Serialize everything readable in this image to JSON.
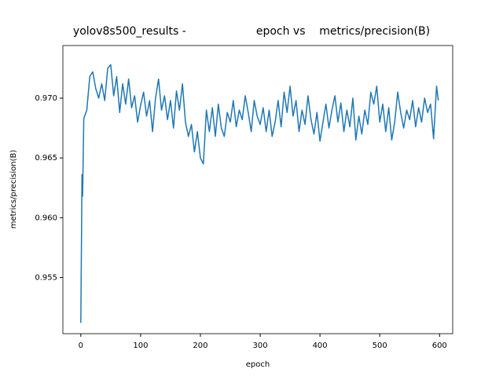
{
  "chart_data": {
    "type": "line",
    "title": "yolov8s500_results -                    epoch vs    metrics/precision(B)",
    "x_label": "epoch",
    "y_label": "metrics/precision(B)",
    "xlim": [
      -30,
      622
    ],
    "ylim": [
      0.9503,
      0.9744
    ],
    "xticks": [
      0,
      100,
      200,
      300,
      400,
      500,
      600
    ],
    "yticks": [
      0.955,
      {
        "value": 0.96,
        "label": "0.960"
      },
      0.965,
      {
        "value": 0.97,
        "label": "0.970"
      }
    ],
    "grid": false,
    "x": [
      0,
      2,
      3,
      5,
      10,
      15,
      20,
      25,
      30,
      35,
      40,
      45,
      50,
      55,
      60,
      65,
      70,
      75,
      80,
      85,
      90,
      95,
      100,
      105,
      110,
      115,
      120,
      125,
      130,
      135,
      140,
      145,
      150,
      155,
      160,
      165,
      170,
      175,
      180,
      185,
      190,
      195,
      200,
      205,
      210,
      215,
      220,
      225,
      230,
      235,
      240,
      245,
      250,
      255,
      260,
      265,
      270,
      275,
      280,
      285,
      290,
      295,
      300,
      305,
      310,
      315,
      320,
      325,
      330,
      335,
      340,
      345,
      350,
      355,
      360,
      365,
      370,
      375,
      380,
      385,
      390,
      395,
      400,
      405,
      410,
      415,
      420,
      425,
      430,
      435,
      440,
      445,
      450,
      455,
      460,
      465,
      470,
      475,
      480,
      485,
      490,
      495,
      500,
      505,
      510,
      515,
      520,
      525,
      530,
      535,
      540,
      545,
      550,
      555,
      560,
      565,
      570,
      575,
      580,
      585,
      590,
      595,
      598
    ],
    "series": [
      {
        "color": "#1f77b4",
        "values": [
          0.9512,
          0.9636,
          0.9618,
          0.9683,
          0.969,
          0.9718,
          0.9722,
          0.9708,
          0.97,
          0.9712,
          0.9698,
          0.9725,
          0.9728,
          0.9702,
          0.9718,
          0.9688,
          0.9712,
          0.9695,
          0.9716,
          0.9692,
          0.9702,
          0.968,
          0.9694,
          0.9705,
          0.9685,
          0.9698,
          0.9672,
          0.97,
          0.9716,
          0.969,
          0.9702,
          0.9682,
          0.9698,
          0.9675,
          0.9706,
          0.969,
          0.9712,
          0.968,
          0.9668,
          0.9678,
          0.9655,
          0.9672,
          0.965,
          0.9645,
          0.969,
          0.9672,
          0.9692,
          0.9668,
          0.9695,
          0.9675,
          0.9668,
          0.9688,
          0.968,
          0.9698,
          0.9676,
          0.969,
          0.9682,
          0.9702,
          0.9688,
          0.9672,
          0.9698,
          0.9685,
          0.9678,
          0.9692,
          0.9672,
          0.969,
          0.9668,
          0.968,
          0.9698,
          0.9676,
          0.9705,
          0.9688,
          0.971,
          0.9685,
          0.9698,
          0.9672,
          0.969,
          0.9678,
          0.9702,
          0.9682,
          0.967,
          0.9688,
          0.9664,
          0.968,
          0.9695,
          0.9675,
          0.969,
          0.9702,
          0.968,
          0.9696,
          0.9672,
          0.969,
          0.9676,
          0.97,
          0.9665,
          0.9685,
          0.967,
          0.969,
          0.9678,
          0.9705,
          0.9695,
          0.971,
          0.968,
          0.9695,
          0.9672,
          0.9692,
          0.9665,
          0.968,
          0.9705,
          0.9688,
          0.9675,
          0.969,
          0.9682,
          0.9698,
          0.9676,
          0.9692,
          0.968,
          0.97,
          0.9688,
          0.9695,
          0.9666,
          0.971,
          0.9698
        ]
      }
    ]
  }
}
